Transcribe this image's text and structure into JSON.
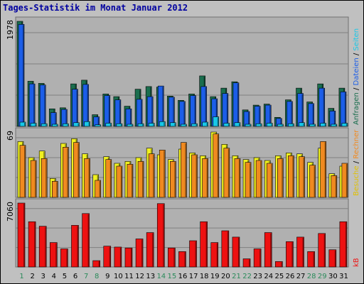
{
  "title": "Tages-Statistik im Monat Januar 2012",
  "colors": {
    "background": "#c0c0c0",
    "panel": "#b0b0b0",
    "grid": "#808080",
    "title": "#0000a0",
    "anfragen": "#1a6e4e",
    "dateien": "#1c5ee8",
    "seiten": "#18c8e8",
    "besuche": "#f0f020",
    "rechner": "#f08a20",
    "kb": "#ee1111",
    "weekend_day": "#2a8a5a",
    "weekday": "#000000"
  },
  "axis": {
    "hits_max_label": "1978",
    "visits_max_label": "69",
    "kb_max_label": "7060"
  },
  "side_labels": {
    "top": [
      {
        "text": "Anfragen",
        "color": "#1a6e4e"
      },
      {
        "text": " / ",
        "color": "#000000"
      },
      {
        "text": "Dateien",
        "color": "#1c5ee8"
      },
      {
        "text": " / ",
        "color": "#000000"
      },
      {
        "text": "Seiten",
        "color": "#18c8e8"
      }
    ],
    "middle": [
      {
        "text": "Besuche",
        "color": "#e0c000"
      },
      {
        "text": " / ",
        "color": "#000000"
      },
      {
        "text": "Rechner",
        "color": "#f08a20"
      }
    ],
    "bottom": [
      {
        "text": "kB",
        "color": "#ee1111"
      }
    ]
  },
  "chart_data": {
    "type": "bar",
    "title": "Tages-Statistik im Monat Januar 2012",
    "categories": [
      "1",
      "2",
      "3",
      "4",
      "5",
      "6",
      "7",
      "8",
      "9",
      "10",
      "11",
      "12",
      "13",
      "14",
      "15",
      "16",
      "17",
      "18",
      "19",
      "20",
      "21",
      "22",
      "23",
      "24",
      "25",
      "26",
      "27",
      "28",
      "29",
      "30",
      "31"
    ],
    "weekend_days": [
      "1",
      "7",
      "8",
      "14",
      "15",
      "21",
      "22",
      "28",
      "29"
    ],
    "panels": [
      {
        "name": "hits",
        "ylim": [
          0,
          1978
        ],
        "series": [
          {
            "name": "Anfragen",
            "values": [
              1978,
              850,
              810,
              330,
              350,
              800,
              870,
              220,
              610,
              560,
              380,
              700,
              750,
              740,
              570,
              490,
              610,
              950,
              560,
              720,
              840,
              310,
              400,
              420,
              170,
              500,
              720,
              460,
              800,
              340,
              720
            ]
          },
          {
            "name": "Dateien",
            "values": [
              1920,
              800,
              780,
              260,
              320,
              700,
              790,
              180,
              580,
              500,
              330,
              510,
              560,
              760,
              550,
              470,
              580,
              750,
              520,
              620,
              820,
              280,
              380,
              400,
              150,
              470,
              620,
              430,
              720,
              290,
              650
            ]
          },
          {
            "name": "Seiten",
            "values": [
              80,
              60,
              50,
              40,
              50,
              70,
              90,
              30,
              60,
              50,
              40,
              50,
              60,
              90,
              70,
              40,
              50,
              80,
              180,
              60,
              70,
              40,
              50,
              60,
              40,
              50,
              70,
              40,
              60,
              40,
              60
            ]
          }
        ]
      },
      {
        "name": "visits",
        "ylim": [
          0,
          69
        ],
        "series": [
          {
            "name": "Besuche",
            "values": [
              59,
              42,
              49,
              20,
              57,
              62,
              46,
              24,
              43,
              36,
              38,
              42,
              52,
              45,
              40,
              51,
              47,
              44,
              69,
              56,
              44,
              40,
              42,
              39,
              44,
              47,
              46,
              37,
              52,
              25,
              33
            ]
          },
          {
            "name": "Rechner",
            "values": [
              55,
              39,
              41,
              17,
              53,
              58,
              41,
              18,
              40,
              33,
              35,
              38,
              46,
              50,
              38,
              58,
              45,
              41,
              67,
              52,
              41,
              37,
              39,
              36,
              41,
              44,
              43,
              34,
              59,
              23,
              36
            ]
          }
        ]
      },
      {
        "name": "kb",
        "ylim": [
          0,
          7060
        ],
        "series": [
          {
            "name": "kB",
            "values": [
              7060,
              5000,
              4500,
              2700,
              2000,
              4600,
              5900,
              700,
              2300,
              2200,
              2100,
              3100,
              3800,
              7000,
              2100,
              1700,
              2900,
              5000,
              2700,
              4000,
              3300,
              900,
              2000,
              3800,
              600,
              2800,
              3300,
              1700,
              3700,
              1900,
              5000
            ]
          }
        ]
      }
    ]
  }
}
